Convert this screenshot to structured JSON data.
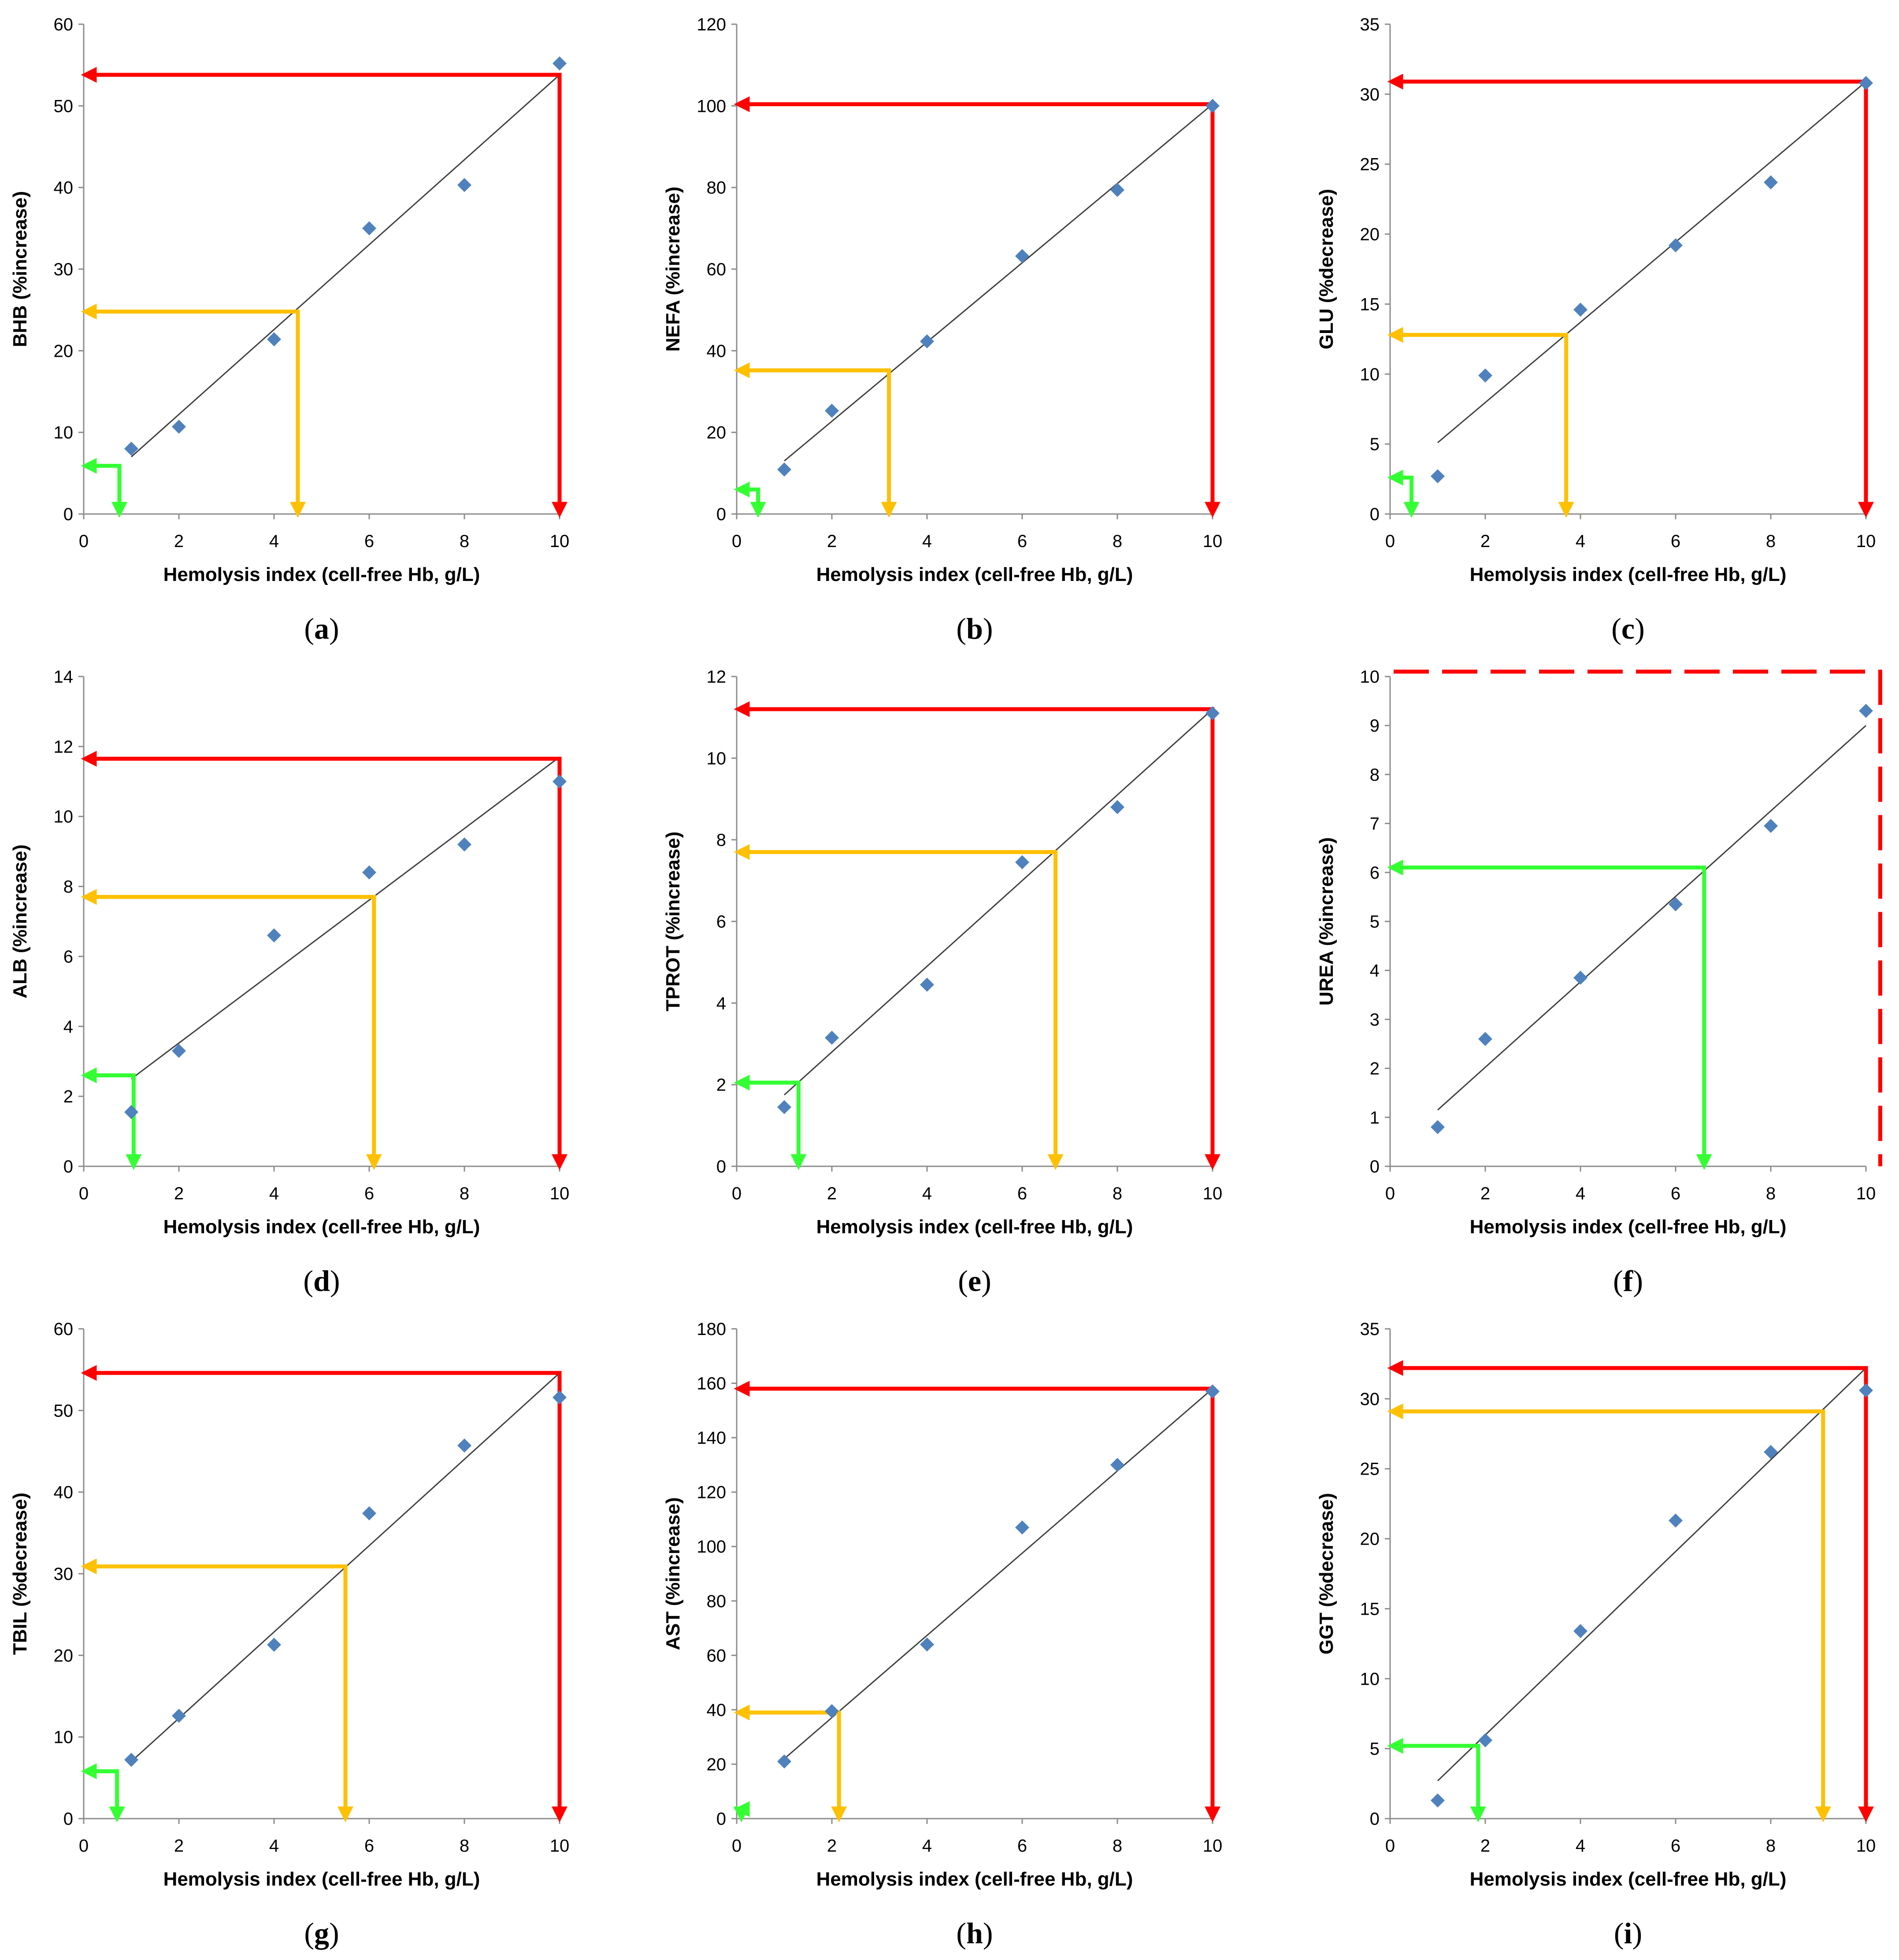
{
  "colors": {
    "marker": "#4f81bd",
    "trendline": "#404040",
    "red": "#ff0000",
    "orange": "#ffc000",
    "green": "#33ff33",
    "axis": "#8c8c8c"
  },
  "chart_data": [
    {
      "type": "scatter",
      "panel": "a",
      "xlabel": "Hemolysis index (cell-free Hb, g/L)",
      "ylabel": "BHB (%increase)",
      "xlim": [
        0,
        10
      ],
      "ylim": [
        0,
        60
      ],
      "xticks": [
        "0",
        "2",
        "4",
        "6",
        "8",
        "10"
      ],
      "yticks": [
        "0",
        "10",
        "20",
        "30",
        "40",
        "50",
        "60"
      ],
      "points": [
        [
          1,
          8
        ],
        [
          2,
          10.7
        ],
        [
          4,
          21.4
        ],
        [
          6,
          35
        ],
        [
          8,
          40.3
        ],
        [
          10,
          55.2
        ]
      ],
      "trendline": [
        [
          1,
          7
        ],
        [
          10,
          53.8
        ]
      ],
      "guides": [
        {
          "color": "red",
          "x": 10,
          "y": 53.8,
          "style": "solid"
        },
        {
          "color": "orange",
          "x": 4.5,
          "y": 24.8,
          "style": "solid"
        },
        {
          "color": "green",
          "x": 0.75,
          "y": 5.9,
          "style": "solid"
        }
      ]
    },
    {
      "type": "scatter",
      "panel": "b",
      "xlabel": "Hemolysis index (cell-free Hb, g/L)",
      "ylabel": "NEFA (%increase)",
      "xlim": [
        0,
        10
      ],
      "ylim": [
        0,
        120
      ],
      "xticks": [
        "0",
        "2",
        "4",
        "6",
        "8",
        "10"
      ],
      "yticks": [
        "0",
        "20",
        "40",
        "60",
        "80",
        "100",
        "120"
      ],
      "points": [
        [
          1,
          10.9
        ],
        [
          2,
          25.3
        ],
        [
          4,
          42.3
        ],
        [
          6,
          63.2
        ],
        [
          8,
          79.4
        ],
        [
          10,
          100
        ]
      ],
      "trendline": [
        [
          1,
          13
        ],
        [
          10,
          100.4
        ]
      ],
      "guides": [
        {
          "color": "red",
          "x": 10,
          "y": 100.4,
          "style": "solid"
        },
        {
          "color": "orange",
          "x": 3.2,
          "y": 35.2,
          "style": "solid"
        },
        {
          "color": "green",
          "x": 0.45,
          "y": 6,
          "style": "solid"
        }
      ]
    },
    {
      "type": "scatter",
      "panel": "c",
      "xlabel": "Hemolysis index (cell-free Hb, g/L)",
      "ylabel": "GLU (%decrease)",
      "xlim": [
        0,
        10
      ],
      "ylim": [
        0,
        35
      ],
      "xticks": [
        "0",
        "2",
        "4",
        "6",
        "8",
        "10"
      ],
      "yticks": [
        "0",
        "5",
        "10",
        "15",
        "20",
        "25",
        "30",
        "35"
      ],
      "points": [
        [
          1,
          2.7
        ],
        [
          2,
          9.9
        ],
        [
          4,
          14.6
        ],
        [
          6,
          19.2
        ],
        [
          8,
          23.7
        ],
        [
          10,
          30.8
        ]
      ],
      "trendline": [
        [
          1,
          5.1
        ],
        [
          10,
          30.9
        ]
      ],
      "guides": [
        {
          "color": "red",
          "x": 10,
          "y": 30.9,
          "style": "solid"
        },
        {
          "color": "orange",
          "x": 3.7,
          "y": 12.8,
          "style": "solid"
        },
        {
          "color": "green",
          "x": 0.45,
          "y": 2.6,
          "style": "solid"
        }
      ]
    },
    {
      "type": "scatter",
      "panel": "d",
      "xlabel": "Hemolysis index (cell-free Hb, g/L)",
      "ylabel": "ALB (%increase)",
      "xlim": [
        0,
        10
      ],
      "ylim": [
        0,
        14
      ],
      "xticks": [
        "0",
        "2",
        "4",
        "6",
        "8",
        "10"
      ],
      "yticks": [
        "0",
        "2",
        "4",
        "6",
        "8",
        "10",
        "12",
        "14"
      ],
      "points": [
        [
          1,
          1.55
        ],
        [
          2,
          3.3
        ],
        [
          4,
          6.6
        ],
        [
          6,
          8.4
        ],
        [
          8,
          9.2
        ],
        [
          10,
          11
        ]
      ],
      "trendline": [
        [
          1,
          2.5
        ],
        [
          10,
          11.7
        ]
      ],
      "guides": [
        {
          "color": "red",
          "x": 10,
          "y": 11.65,
          "style": "solid"
        },
        {
          "color": "orange",
          "x": 6.1,
          "y": 7.7,
          "style": "solid"
        },
        {
          "color": "green",
          "x": 1.05,
          "y": 2.6,
          "style": "solid"
        }
      ]
    },
    {
      "type": "scatter",
      "panel": "e",
      "xlabel": "Hemolysis index (cell-free Hb, g/L)",
      "ylabel": "TPROT (%increase)",
      "xlim": [
        0,
        10
      ],
      "ylim": [
        0,
        12
      ],
      "xticks": [
        "0",
        "2",
        "4",
        "6",
        "8",
        "10"
      ],
      "yticks": [
        "0",
        "2",
        "4",
        "6",
        "8",
        "10",
        "12"
      ],
      "points": [
        [
          1,
          1.45
        ],
        [
          2,
          3.15
        ],
        [
          4,
          4.45
        ],
        [
          6,
          7.45
        ],
        [
          8,
          8.8
        ],
        [
          10,
          11.1
        ]
      ],
      "trendline": [
        [
          1,
          1.75
        ],
        [
          10,
          11.2
        ]
      ],
      "guides": [
        {
          "color": "red",
          "x": 10,
          "y": 11.2,
          "style": "solid"
        },
        {
          "color": "orange",
          "x": 6.7,
          "y": 7.7,
          "style": "solid"
        },
        {
          "color": "green",
          "x": 1.3,
          "y": 2.05,
          "style": "solid"
        }
      ]
    },
    {
      "type": "scatter",
      "panel": "f",
      "xlabel": "Hemolysis index (cell-free Hb, g/L)",
      "ylabel": "UREA (%increase)",
      "xlim": [
        0,
        10
      ],
      "ylim": [
        0,
        10
      ],
      "xticks": [
        "0",
        "2",
        "4",
        "6",
        "8",
        "10"
      ],
      "yticks": [
        "0",
        "1",
        "2",
        "3",
        "4",
        "5",
        "6",
        "7",
        "8",
        "9",
        "10"
      ],
      "points": [
        [
          1,
          0.8
        ],
        [
          2,
          2.6
        ],
        [
          4,
          3.85
        ],
        [
          6,
          5.35
        ],
        [
          8,
          6.95
        ],
        [
          10,
          9.3
        ]
      ],
      "trendline": [
        [
          1,
          1.15
        ],
        [
          10,
          9
        ]
      ],
      "guides": [
        {
          "color": "red",
          "x": 10.3,
          "y": 10.1,
          "style": "dashed"
        },
        {
          "color": "green",
          "x": 6.6,
          "y": 6.1,
          "style": "solid"
        }
      ]
    },
    {
      "type": "scatter",
      "panel": "g",
      "xlabel": "Hemolysis index (cell-free Hb, g/L)",
      "ylabel": "TBIL (%decrease)",
      "xlim": [
        0,
        10
      ],
      "ylim": [
        0,
        60
      ],
      "xticks": [
        "0",
        "2",
        "4",
        "6",
        "8",
        "10"
      ],
      "yticks": [
        "0",
        "10",
        "20",
        "30",
        "40",
        "50",
        "60"
      ],
      "points": [
        [
          1,
          7.2
        ],
        [
          2,
          12.6
        ],
        [
          4,
          21.3
        ],
        [
          6,
          37.4
        ],
        [
          8,
          45.7
        ],
        [
          10,
          51.6
        ]
      ],
      "trendline": [
        [
          1,
          7
        ],
        [
          10,
          54.6
        ]
      ],
      "guides": [
        {
          "color": "red",
          "x": 10,
          "y": 54.6,
          "style": "solid"
        },
        {
          "color": "orange",
          "x": 5.5,
          "y": 30.9,
          "style": "solid"
        },
        {
          "color": "green",
          "x": 0.7,
          "y": 5.8,
          "style": "solid"
        }
      ]
    },
    {
      "type": "scatter",
      "panel": "h",
      "xlabel": "Hemolysis index (cell-free Hb, g/L)",
      "ylabel": "AST (%increase)",
      "xlim": [
        0,
        10
      ],
      "ylim": [
        0,
        180
      ],
      "xticks": [
        "0",
        "2",
        "4",
        "6",
        "8",
        "10"
      ],
      "yticks": [
        "0",
        "20",
        "40",
        "60",
        "80",
        "100",
        "120",
        "140",
        "160",
        "180"
      ],
      "points": [
        [
          1,
          21
        ],
        [
          2,
          39.5
        ],
        [
          4,
          64
        ],
        [
          6,
          107
        ],
        [
          8,
          130
        ],
        [
          10,
          157
        ]
      ],
      "trendline": [
        [
          1,
          22
        ],
        [
          10,
          158
        ]
      ],
      "guides": [
        {
          "color": "red",
          "x": 10,
          "y": 158,
          "style": "solid"
        },
        {
          "color": "orange",
          "x": 2.15,
          "y": 39,
          "style": "solid"
        },
        {
          "color": "green",
          "x": 0.1,
          "y": 3.5,
          "style": "solid"
        }
      ]
    },
    {
      "type": "scatter",
      "panel": "i",
      "xlabel": "Hemolysis index (cell-free Hb, g/L)",
      "ylabel": "GGT (%decrease)",
      "xlim": [
        0,
        10
      ],
      "ylim": [
        0,
        35
      ],
      "xticks": [
        "0",
        "2",
        "4",
        "6",
        "8",
        "10"
      ],
      "yticks": [
        "0",
        "5",
        "10",
        "15",
        "20",
        "25",
        "30",
        "35"
      ],
      "points": [
        [
          1,
          1.3
        ],
        [
          2,
          5.6
        ],
        [
          4,
          13.4
        ],
        [
          6,
          21.3
        ],
        [
          8,
          26.2
        ],
        [
          10,
          30.6
        ]
      ],
      "trendline": [
        [
          1,
          2.7
        ],
        [
          10,
          32.2
        ]
      ],
      "guides": [
        {
          "color": "red",
          "x": 10,
          "y": 32.2,
          "style": "solid"
        },
        {
          "color": "orange",
          "x": 9.1,
          "y": 29.1,
          "style": "solid"
        },
        {
          "color": "green",
          "x": 1.85,
          "y": 5.2,
          "style": "solid"
        }
      ]
    }
  ]
}
